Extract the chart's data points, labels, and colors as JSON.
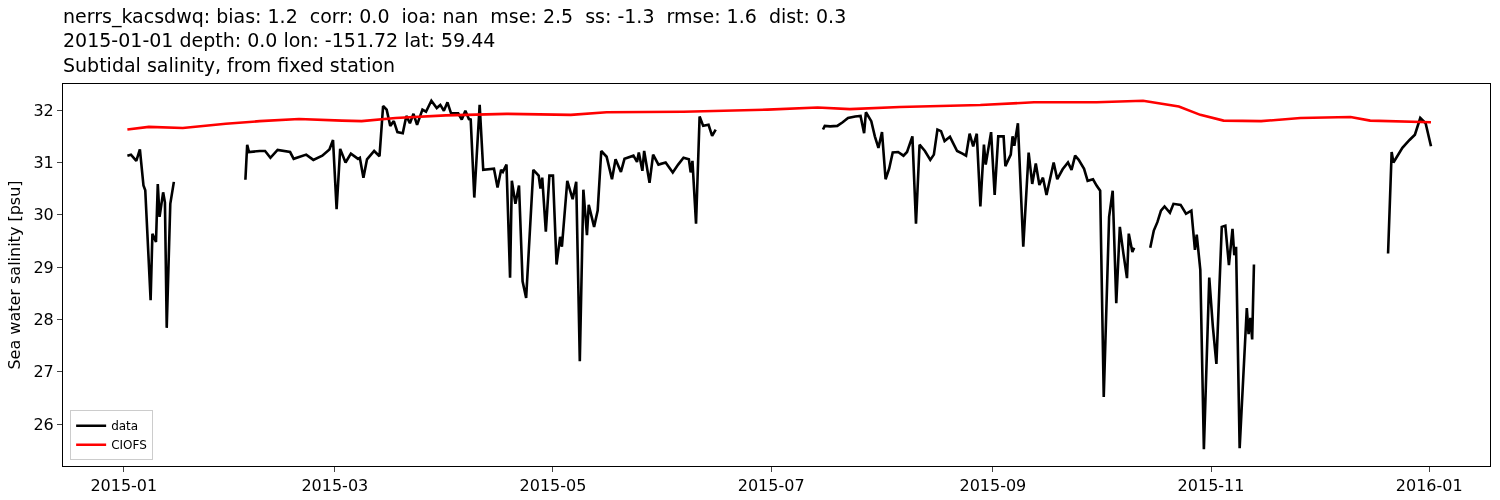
{
  "chart_data": {
    "type": "line",
    "title": "nerrs_kacsdwq: bias: 1.2  corr: 0.0  ioa: nan  mse: 2.5  ss: -1.3  rmse: 1.6  dist: 0.3\n2015-01-01 depth: 0.0 lon: -151.72 lat: 59.44\nSubtidal salinity, from fixed station",
    "ylabel": "Sea water salinity [psu]",
    "xlim": [
      "2014-12-15",
      "2016-01-18"
    ],
    "ylim": [
      25.2,
      32.5
    ],
    "xticks": [
      "2015-01",
      "2015-03",
      "2015-05",
      "2015-07",
      "2015-09",
      "2015-11",
      "2016-01"
    ],
    "yticks": [
      26,
      27,
      28,
      29,
      30,
      31,
      32
    ],
    "grid": false,
    "legend": "bottom left",
    "marker": "none",
    "line_style": "solid",
    "series": [
      {
        "name": "data",
        "color": "#000000",
        "x": [
          "2015-01-02",
          "2015-01-03",
          "2015-01-04T12:00",
          "2015-01-05T12:00",
          "2015-01-06T12:00",
          "2015-01-07",
          "2015-01-08T12:00",
          "2015-01-09",
          "2015-01-10",
          "2015-01-10T12:00",
          "2015-01-11",
          "2015-01-12",
          "2015-01-12T12:00",
          "2015-01-13",
          "2015-01-14",
          "2015-01-15",
          "2015-01-20",
          "2015-02-04",
          "2015-02-04T12:00",
          "2015-02-05",
          "2015-02-08",
          "2015-02-09T12:00",
          "2015-02-11",
          "2015-02-13",
          "2015-02-16T12:00",
          "2015-02-17T12:00",
          "2015-02-21",
          "2015-02-23",
          "2015-02-25T12:00",
          "2015-02-27T12:00",
          "2015-02-28T12:00",
          "2015-03-01T12:00",
          "2015-03-02T12:00",
          "2015-03-04",
          "2015-03-05T12:00",
          "2015-03-07T12:00",
          "2015-03-08",
          "2015-03-09",
          "2015-03-10",
          "2015-03-12",
          "2015-03-13T12:00",
          "2015-03-14T12:00",
          "2015-03-15T12:00",
          "2015-03-16T12:00",
          "2015-03-17T12:00",
          "2015-03-18T12:00",
          "2015-03-20",
          "2015-03-21",
          "2015-03-22",
          "2015-03-23",
          "2015-03-24",
          "2015-03-25T12:00",
          "2015-03-26T12:00",
          "2015-03-28",
          "2015-03-29T12:00",
          "2015-03-30T12:00",
          "2015-03-31T12:00",
          "2015-04-01T12:00",
          "2015-04-02T12:00",
          "2015-04-04T12:00",
          "2015-04-05T12:00",
          "2015-04-06T12:00",
          "2015-04-07T12:00",
          "2015-04-08",
          "2015-04-09",
          "2015-04-10T12:00",
          "2015-04-11T12:00",
          "2015-04-14T12:00",
          "2015-04-15T12:00",
          "2015-04-16T12:00",
          "2015-04-17",
          "2015-04-18",
          "2015-04-19",
          "2015-04-19T12:00",
          "2015-04-20T12:00",
          "2015-04-21T12:00",
          "2015-04-22T12:00",
          "2015-04-23T12:00",
          "2015-04-25T12:00",
          "2015-04-27",
          "2015-04-27T12:00",
          "2015-04-28",
          "2015-04-29",
          "2015-04-30",
          "2015-05-01",
          "2015-05-02",
          "2015-05-03",
          "2015-05-03T12:00",
          "2015-05-05",
          "2015-05-06T12:00",
          "2015-05-07T12:00",
          "2015-05-08T12:00",
          "2015-05-09T12:00",
          "2015-05-10T12:00",
          "2015-05-11",
          "2015-05-12T12:00",
          "2015-05-13T12:00",
          "2015-05-14T12:00",
          "2015-05-16",
          "2015-05-17T12:00",
          "2015-05-18T12:00",
          "2015-05-20",
          "2015-05-21",
          "2015-05-23T12:00",
          "2015-05-24T12:00",
          "2015-05-25",
          "2015-05-26",
          "2015-05-26T12:00",
          "2015-05-28",
          "2015-05-29",
          "2015-05-30T12:00",
          "2015-06-01T12:00",
          "2015-06-03T12:00",
          "2015-06-05",
          "2015-06-06T12:00",
          "2015-06-08",
          "2015-06-08T12:00",
          "2015-06-09",
          "2015-06-10",
          "2015-06-11",
          "2015-06-12",
          "2015-06-13T12:00",
          "2015-06-14T12:00",
          "2015-06-15T12:00",
          "2015-06-25",
          "2015-07-15T12:00",
          "2015-07-16",
          "2015-07-17T12:00",
          "2015-07-19T12:00",
          "2015-07-21",
          "2015-07-22T12:00",
          "2015-07-24T12:00",
          "2015-07-26",
          "2015-07-27",
          "2015-07-27T12:00",
          "2015-07-29",
          "2015-07-30",
          "2015-07-31",
          "2015-08-01",
          "2015-08-02",
          "2015-08-03",
          "2015-08-04",
          "2015-08-05T12:00",
          "2015-08-07",
          "2015-08-08",
          "2015-08-09T12:00",
          "2015-08-10T12:00",
          "2015-08-11T12:00",
          "2015-08-13",
          "2015-08-14T12:00",
          "2015-08-15T12:00",
          "2015-08-16T12:00",
          "2015-08-17T12:00",
          "2015-08-18T12:00",
          "2015-08-20",
          "2015-08-22",
          "2015-08-23T12:00",
          "2015-08-24T12:00",
          "2015-08-25T12:00",
          "2015-08-26T12:00",
          "2015-08-27T12:00",
          "2015-08-28T12:00",
          "2015-08-29T12:00",
          "2015-08-30",
          "2015-08-31T12:00",
          "2015-09-01T12:00",
          "2015-09-02T12:00",
          "2015-09-04",
          "2015-09-04T12:00",
          "2015-09-06",
          "2015-09-06T12:00",
          "2015-09-07",
          "2015-09-08",
          "2015-09-09T12:00",
          "2015-09-11",
          "2015-09-12",
          "2015-09-13",
          "2015-09-14",
          "2015-09-15",
          "2015-09-16",
          "2015-09-18",
          "2015-09-19",
          "2015-09-20T12:00",
          "2015-09-22",
          "2015-09-23",
          "2015-09-24",
          "2015-09-25",
          "2015-09-26T12:00",
          "2015-09-27T12:00",
          "2015-09-29",
          "2015-09-30",
          "2015-10-01",
          "2015-10-02",
          "2015-10-03T12:00",
          "2015-10-04T12:00",
          "2015-10-05T12:00",
          "2015-10-06T12:00",
          "2015-10-07T12:00",
          "2015-10-08T12:00",
          "2015-10-09",
          "2015-10-10",
          "2015-10-10T12:00",
          "2015-10-12",
          "2015-10-15",
          "2015-10-16",
          "2015-10-17",
          "2015-10-18",
          "2015-10-19",
          "2015-10-20T12:00",
          "2015-10-21T12:00",
          "2015-10-23T12:00",
          "2015-10-25",
          "2015-10-26T12:00",
          "2015-10-27T12:00",
          "2015-10-28",
          "2015-10-29",
          "2015-10-30",
          "2015-10-31T12:00",
          "2015-11-01T12:00",
          "2015-11-02T12:00",
          "2015-11-04",
          "2015-11-05",
          "2015-11-06",
          "2015-11-07",
          "2015-11-07T12:00",
          "2015-11-08",
          "2015-11-09",
          "2015-11-11",
          "2015-11-11T12:00",
          "2015-11-12",
          "2015-11-12T12:00",
          "2015-11-13",
          "2015-11-20",
          "2015-12-20T12:00",
          "2015-12-21T12:00",
          "2015-12-22",
          "2015-12-24T12:00",
          "2015-12-26T12:00",
          "2015-12-28",
          "2015-12-29T12:00",
          "2015-12-31",
          "2016-01-01T12:00"
        ],
        "values": [
          31.13,
          31.15,
          31.03,
          31.25,
          30.56,
          30.47,
          28.37,
          29.64,
          29.48,
          30.59,
          29.96,
          30.43,
          30.24,
          27.84,
          30.21,
          30.63,
          null,
          30.67,
          31.34,
          31.2,
          31.22,
          31.22,
          31.09,
          31.24,
          31.2,
          31.07,
          31.15,
          31.05,
          31.13,
          31.25,
          31.43,
          30.11,
          31.26,
          31.0,
          31.17,
          31.07,
          31.09,
          30.71,
          31.06,
          31.22,
          31.12,
          32.08,
          32.01,
          31.7,
          31.79,
          31.58,
          31.56,
          31.89,
          31.75,
          31.93,
          31.72,
          32.01,
          31.97,
          32.18,
          32.04,
          32.1,
          31.99,
          32.15,
          31.94,
          31.94,
          31.82,
          31.99,
          31.83,
          31.82,
          30.33,
          32.1,
          30.86,
          30.88,
          30.52,
          30.86,
          30.82,
          30.96,
          28.8,
          30.65,
          30.21,
          30.56,
          28.73,
          28.41,
          30.86,
          30.75,
          30.5,
          30.71,
          29.68,
          30.75,
          30.75,
          29.05,
          29.58,
          29.39,
          30.65,
          30.3,
          30.63,
          27.2,
          30.48,
          29.61,
          30.19,
          29.77,
          30.08,
          31.22,
          31.11,
          30.68,
          31.06,
          30.82,
          31.07,
          31.13,
          31.01,
          31.19,
          30.84,
          31.22,
          30.61,
          31.15,
          30.96,
          31.0,
          30.81,
          30.96,
          31.09,
          31.06,
          30.81,
          31.03,
          29.83,
          31.88,
          31.7,
          31.72,
          31.51,
          31.63,
          null,
          31.63,
          31.7,
          31.69,
          31.7,
          31.77,
          31.85,
          31.88,
          31.89,
          31.56,
          31.96,
          31.79,
          31.5,
          31.28,
          31.58,
          30.68,
          30.88,
          31.19,
          31.2,
          31.13,
          31.2,
          31.5,
          29.83,
          31.34,
          31.22,
          31.05,
          31.15,
          31.63,
          31.6,
          31.41,
          31.49,
          31.22,
          31.17,
          31.13,
          31.55,
          31.31,
          31.55,
          30.16,
          31.34,
          30.96,
          31.58,
          30.38,
          31.5,
          31.5,
          30.93,
          31.15,
          31.5,
          31.32,
          31.75,
          29.39,
          31.19,
          30.59,
          30.98,
          30.57,
          30.71,
          30.38,
          31.0,
          30.68,
          30.87,
          31.0,
          30.86,
          31.13,
          31.05,
          30.88,
          30.65,
          30.68,
          30.56,
          30.46,
          26.52,
          29.96,
          30.46,
          28.31,
          29.77,
          29.26,
          28.79,
          29.64,
          29.29,
          29.37,
          null,
          29.37,
          29.7,
          29.86,
          30.08,
          30.16,
          30.04,
          30.21,
          30.19,
          30.02,
          30.08,
          29.33,
          29.62,
          28.95,
          25.52,
          28.8,
          27.87,
          27.15,
          29.77,
          29.79,
          29.04,
          29.73,
          29.23,
          29.39,
          25.54,
          28.22,
          27.72,
          28.03,
          27.62,
          29.05,
          null,
          29.26,
          31.2,
          31.0,
          31.28,
          31.43,
          31.53,
          31.85,
          31.75,
          31.31
        ]
      },
      {
        "name": "CIOFS",
        "color": "#ff0000",
        "x": [
          "2015-01-02",
          "2015-01-08",
          "2015-01-17T12:00",
          "2015-01-29T12:00",
          "2015-02-08",
          "2015-02-19",
          "2015-03-03",
          "2015-03-08T12:00",
          "2015-03-18",
          "2015-04-01",
          "2015-04-18",
          "2015-05-06",
          "2015-05-16",
          "2015-06-06T12:00",
          "2015-06-30",
          "2015-07-14",
          "2015-07-23",
          "2015-08-06",
          "2015-08-28T12:00",
          "2015-09-12T12:00",
          "2015-09-30",
          "2015-10-13",
          "2015-10-23",
          "2015-10-29",
          "2015-11-04T12:00",
          "2015-11-15",
          "2015-11-26",
          "2015-12-10",
          "2015-12-15T12:00",
          "2016-01-01T12:00"
        ],
        "values": [
          31.63,
          31.68,
          31.66,
          31.74,
          31.79,
          31.83,
          31.8,
          31.79,
          31.85,
          31.9,
          31.93,
          31.91,
          31.96,
          31.97,
          32.01,
          32.05,
          32.02,
          32.06,
          32.1,
          32.15,
          32.15,
          32.18,
          32.07,
          31.91,
          31.8,
          31.79,
          31.85,
          31.87,
          31.8,
          31.77
        ]
      }
    ]
  }
}
